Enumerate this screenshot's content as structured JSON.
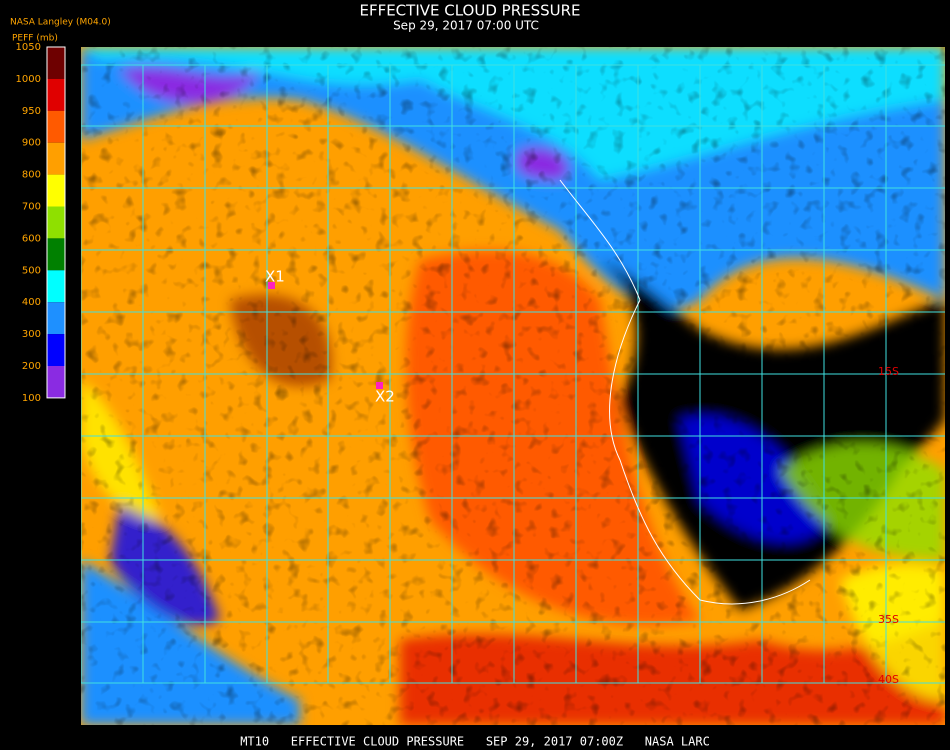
{
  "header": {
    "title": "EFFECTIVE CLOUD PRESSURE",
    "subtitle": "Sep 29, 2017 07:00 UTC",
    "source": "NASA Langley (M04.0)"
  },
  "colorbar": {
    "title": "PEFF (mb)",
    "labels": [
      1050,
      1000,
      950,
      900,
      800,
      700,
      600,
      500,
      400,
      300,
      200,
      100
    ],
    "colors": [
      "#6e0000",
      "#e00000",
      "#ff5a00",
      "#ff9f00",
      "#ffff00",
      "#8fe000",
      "#008000",
      "#00ffff",
      "#1e90ff",
      "#0000ff",
      "#8a2be2"
    ]
  },
  "markers": [
    {
      "label": "X1"
    },
    {
      "label": "X2"
    }
  ],
  "grid_labels": [
    "15S",
    "35S",
    "40S"
  ],
  "footer": "MT10   EFFECTIVE CLOUD PRESSURE   SEP 29, 2017 07:00Z   NASA LARC"
}
